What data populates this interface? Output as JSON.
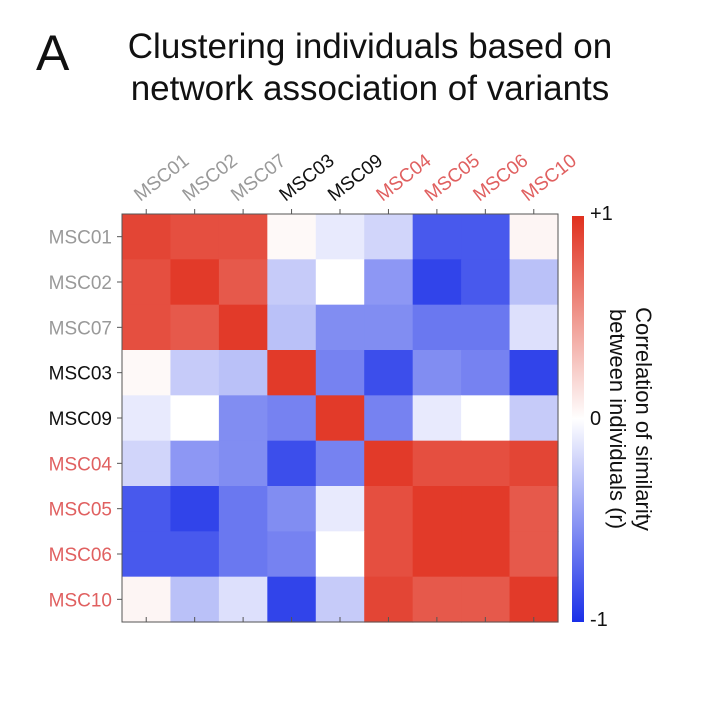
{
  "panel_label": "A",
  "chart_data": {
    "type": "heatmap",
    "title": [
      "Clustering individuals based on",
      "network association of variants"
    ],
    "labels": [
      "MSC01",
      "MSC02",
      "MSC07",
      "MSC03",
      "MSC09",
      "MSC04",
      "MSC05",
      "MSC06",
      "MSC10"
    ],
    "label_colors": [
      "#999999",
      "#999999",
      "#999999",
      "#111111",
      "#111111",
      "#e06060",
      "#e06060",
      "#e06060",
      "#e06060"
    ],
    "values": [
      [
        0.9,
        0.85,
        0.85,
        0.03,
        -0.1,
        -0.2,
        -0.8,
        -0.8,
        0.05
      ],
      [
        0.85,
        0.95,
        0.8,
        -0.25,
        0.0,
        -0.5,
        -0.9,
        -0.8,
        -0.3
      ],
      [
        0.85,
        0.8,
        0.95,
        -0.3,
        -0.55,
        -0.55,
        -0.65,
        -0.65,
        -0.15
      ],
      [
        0.03,
        -0.25,
        -0.3,
        0.95,
        -0.6,
        -0.85,
        -0.55,
        -0.6,
        -0.9
      ],
      [
        -0.1,
        0.0,
        -0.55,
        -0.6,
        0.95,
        -0.6,
        -0.1,
        0.0,
        -0.25
      ],
      [
        -0.2,
        -0.5,
        -0.55,
        -0.85,
        -0.6,
        0.95,
        0.85,
        0.85,
        0.9
      ],
      [
        -0.8,
        -0.9,
        -0.65,
        -0.55,
        -0.1,
        0.85,
        0.95,
        0.95,
        0.8
      ],
      [
        -0.8,
        -0.8,
        -0.65,
        -0.6,
        0.0,
        0.85,
        0.95,
        0.95,
        0.8
      ],
      [
        0.05,
        -0.3,
        -0.15,
        -0.9,
        -0.25,
        0.9,
        0.8,
        0.8,
        0.95
      ]
    ],
    "colorbar": {
      "label": [
        "Correlation of similarity",
        "between individuals (r)"
      ],
      "ticks": [
        "+1",
        "0",
        "-1"
      ],
      "range": [
        -1,
        1
      ],
      "colors": {
        "low": "#1a2fe8",
        "mid": "#ffffff",
        "high": "#e0301e"
      }
    }
  }
}
